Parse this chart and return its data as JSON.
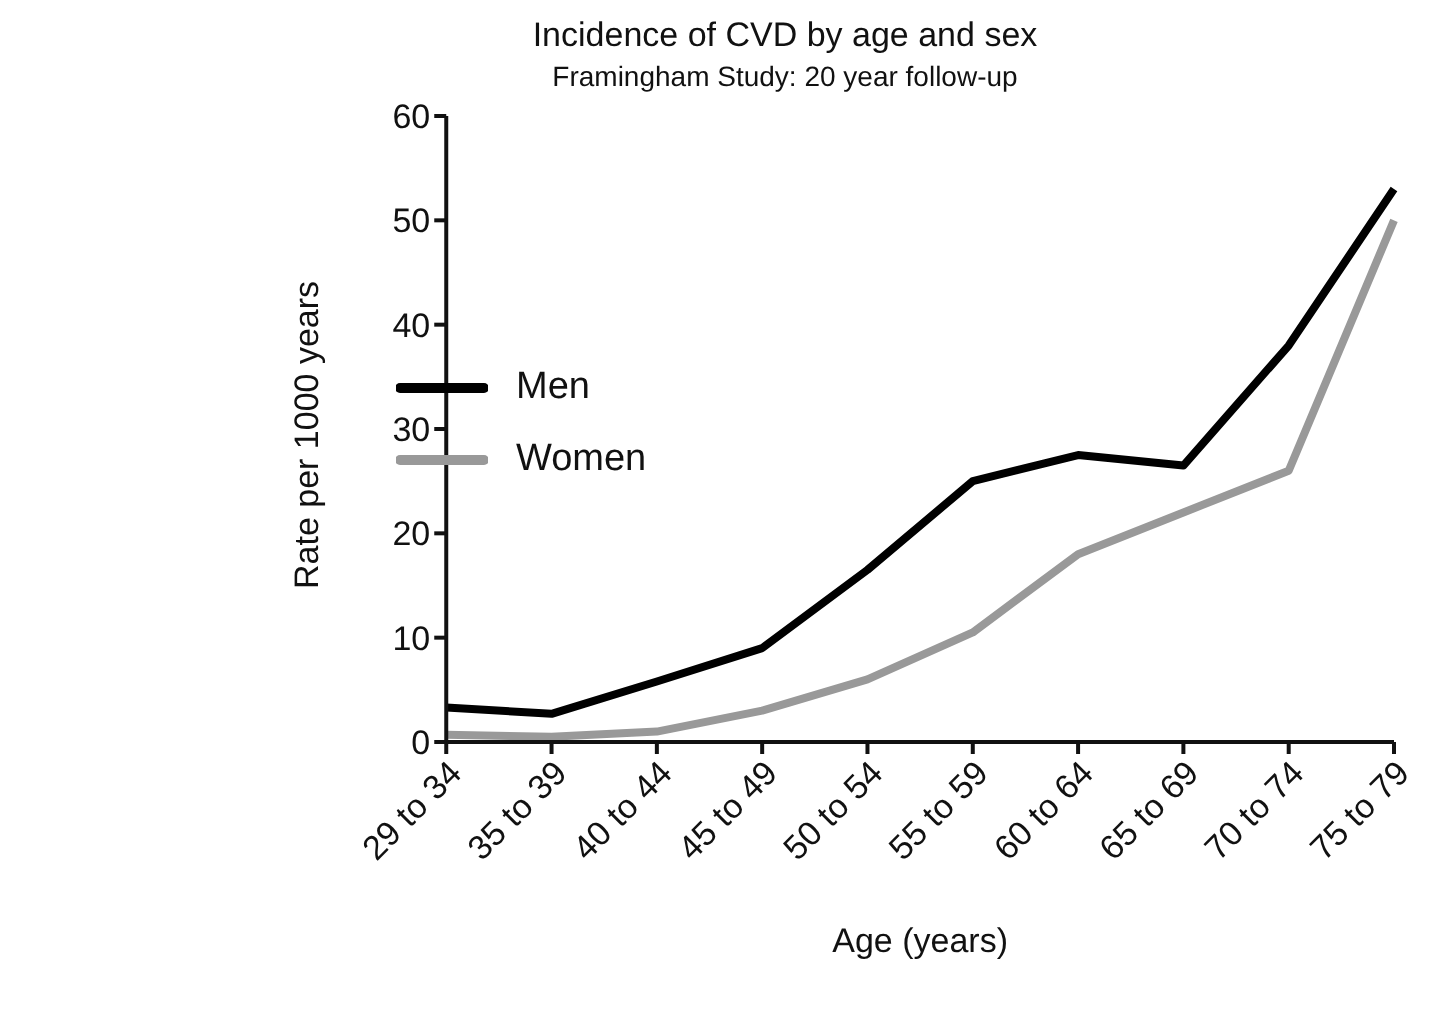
{
  "chart_data": {
    "type": "line",
    "title": "Incidence of CVD by age and sex",
    "subtitle": "Framingham Study: 20 year follow-up",
    "xlabel": "Age (years)",
    "ylabel": "Rate per 1000 years",
    "categories": [
      "29 to 34",
      "35 to 39",
      "40 to 44",
      "45 to 49",
      "50 to 54",
      "55 to 59",
      "60 to 64",
      "65 to 69",
      "70 to 74",
      "75 to 79"
    ],
    "series": [
      {
        "name": "Men",
        "color": "#000000",
        "values": [
          3.3,
          2.7,
          5.8,
          9,
          16.5,
          25,
          27.5,
          26.5,
          38,
          53
        ]
      },
      {
        "name": "Women",
        "color": "#999999",
        "values": [
          0.7,
          0.5,
          1,
          3,
          6,
          10.5,
          18,
          22,
          26,
          50
        ]
      }
    ],
    "ylim": [
      0,
      60
    ],
    "yticks": [
      0,
      10,
      20,
      30,
      40,
      50,
      60
    ],
    "grid": false,
    "legend": "top left",
    "marker": "none",
    "line_style": "solid"
  }
}
